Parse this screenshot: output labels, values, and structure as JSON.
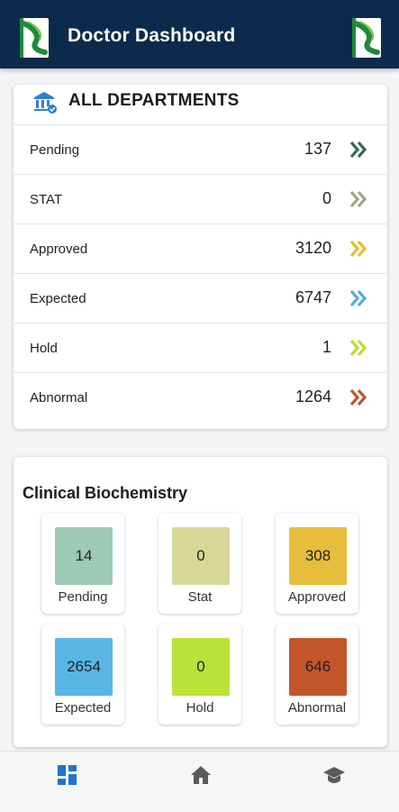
{
  "header": {
    "title": "Doctor Dashboard"
  },
  "all_departments": {
    "title": "ALL DEPARTMENTS",
    "rows": [
      {
        "label": "Pending",
        "value": "137",
        "chevron_color": "#2f6b4e"
      },
      {
        "label": "STAT",
        "value": "0",
        "chevron_color": "#a3a384"
      },
      {
        "label": "Approved",
        "value": "3120",
        "chevron_color": "#e6bd2a"
      },
      {
        "label": "Expected",
        "value": "6747",
        "chevron_color": "#52a8df"
      },
      {
        "label": "Hold",
        "value": "1",
        "chevron_color": "#b6df2a"
      },
      {
        "label": "Abnormal",
        "value": "1264",
        "chevron_color": "#c2532a"
      }
    ]
  },
  "clinical_biochemistry": {
    "title": "Clinical Biochemistry",
    "tiles": [
      {
        "label": "Pending",
        "value": "14",
        "color": "#9ccab4"
      },
      {
        "label": "Stat",
        "value": "0",
        "color": "#d6d995"
      },
      {
        "label": "Approved",
        "value": "308",
        "color": "#e6bd3c"
      },
      {
        "label": "Expected",
        "value": "2654",
        "color": "#58b6e3"
      },
      {
        "label": "Hold",
        "value": "0",
        "color": "#b9e339"
      },
      {
        "label": "Abnormal",
        "value": "646",
        "color": "#c4562b"
      }
    ]
  },
  "bottom_nav": {
    "items": [
      {
        "icon": "dashboard-icon",
        "active": true
      },
      {
        "icon": "home-icon",
        "active": false
      },
      {
        "icon": "graduation-cap-icon",
        "active": false
      }
    ]
  },
  "colors": {
    "header_bg": "#0c2a4c",
    "nav_active": "#1f74d2",
    "nav_inactive": "#5a5a5a"
  }
}
